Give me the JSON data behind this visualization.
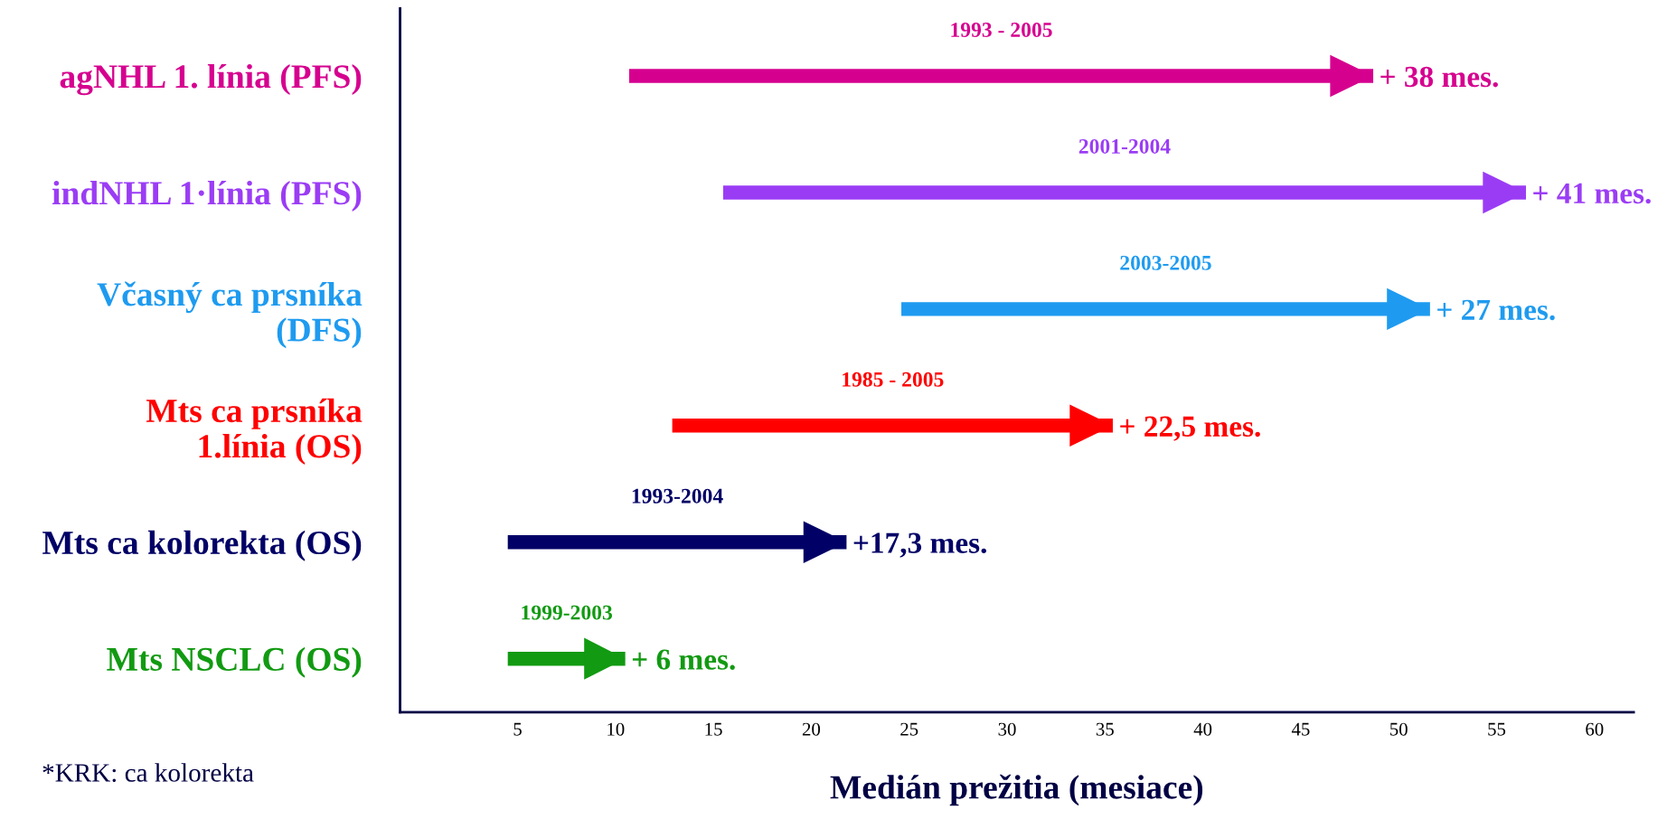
{
  "chart_data": {
    "type": "bar",
    "orientation": "horizontal",
    "categories": [
      "agNHL 1. línia (PFS)",
      "indNHL 1·línia (PFS)",
      "Včasný ca prsníka\n(DFS)",
      "Mts ca prsníka\n1.línia (OS)",
      "Mts ca kolorekta (OS)",
      "Mts NSCLC (OS)"
    ],
    "base": [
      10.7,
      15.5,
      24.6,
      12.9,
      4.5,
      4.5
    ],
    "values": [
      38,
      41,
      27,
      22.5,
      17.3,
      6
    ],
    "value_labels": [
      "+ 38 mes.",
      "+ 41 mes.",
      "+ 27 mes.",
      "+ 22,5 mes.",
      "+17,3 mes.",
      "+ 6 mes."
    ],
    "colors": [
      "#d6008f",
      "#9b3cf5",
      "#1e9bf0",
      "#ff0000",
      "#000066",
      "#129a12"
    ],
    "xlim": [
      -1,
      62
    ],
    "xticks": [
      5,
      10,
      15,
      20,
      25,
      30,
      35,
      40,
      45,
      50,
      55,
      60
    ],
    "xlabel": "Medián prežitia (mesiace)",
    "annotations": [
      "1993 - 2005",
      "2001-2004",
      "2003-2005",
      "1985 - 2005",
      "1993-2004",
      "1999-2003",
      "*KRK: ca kolorekta"
    ],
    "grid": false
  }
}
